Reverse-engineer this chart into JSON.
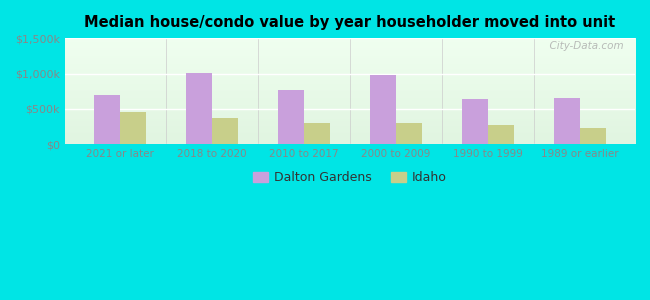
{
  "title": "Median house/condo value by year householder moved into unit",
  "categories": [
    "2021 or later",
    "2018 to 2020",
    "2010 to 2017",
    "2000 to 2009",
    "1990 to 1999",
    "1989 or earlier"
  ],
  "dalton_gardens": [
    700000,
    1010000,
    770000,
    980000,
    645000,
    660000
  ],
  "idaho": [
    450000,
    370000,
    305000,
    295000,
    270000,
    235000
  ],
  "dalton_color": "#c9a0dc",
  "idaho_color": "#c8cf8a",
  "background_color": "#00e5e5",
  "ylabel_values": [
    0,
    500000,
    1000000,
    1500000
  ],
  "ylabel_labels": [
    "$0",
    "$500k",
    "$1,000k",
    "$1,500k"
  ],
  "ylim": [
    0,
    1500000
  ],
  "watermark": "  City-Data.com",
  "legend_dalton": "Dalton Gardens",
  "legend_idaho": "Idaho",
  "bar_width": 0.28
}
